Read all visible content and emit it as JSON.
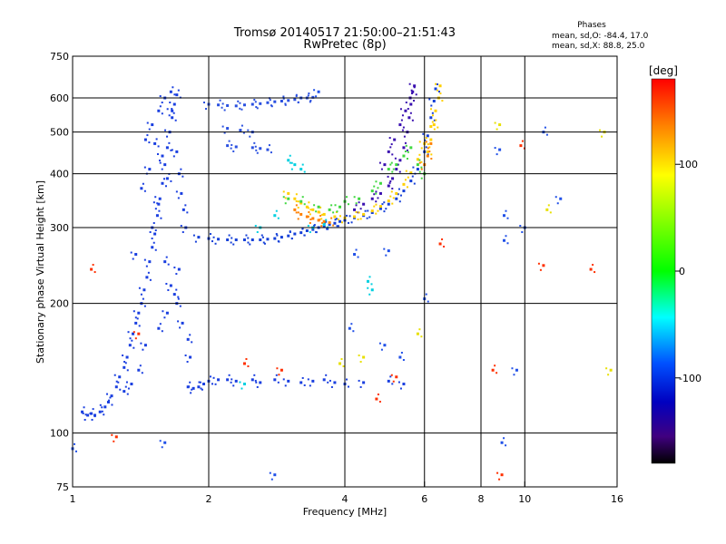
{
  "chart_data": {
    "type": "scatter",
    "title": "Tromsø 20140517 21:50:00–21:51:43",
    "subtitle": "RwPretec (8p)",
    "xlabel": "Frequency [MHz]",
    "ylabel": "Stationary phase Virtual Height [km]",
    "x_scale": "log2",
    "y_scale": "log",
    "xlim": [
      1,
      16
    ],
    "ylim": [
      75,
      750
    ],
    "x_ticks": [
      1,
      2,
      4,
      6,
      8,
      10,
      16
    ],
    "y_ticks": [
      75,
      100,
      200,
      300,
      400,
      500,
      600,
      750
    ],
    "grid": true,
    "phases_header": "Phases",
    "phase_stats": [
      "mean, sd,O: -84.4, 17.0",
      "mean, sd,X:  88.8, 25.0"
    ],
    "colorbar": {
      "label": "[deg]",
      "range": [
        -180,
        180
      ],
      "ticks": [
        100,
        0,
        -100
      ],
      "colors": [
        "#ff0000",
        "#ff8000",
        "#ffff00",
        "#00ff00",
        "#00ffff",
        "#0040ff",
        "#0000c0",
        "#400080",
        "#000000"
      ]
    },
    "series": [
      {
        "comment_key": "F1 low-frequency column",
        "color": "#1a3fe0",
        "points": [
          [
            1.05,
            112
          ],
          [
            1.08,
            110
          ],
          [
            1.1,
            111
          ],
          [
            1.12,
            110
          ],
          [
            1.15,
            112
          ],
          [
            1.18,
            115
          ],
          [
            1.2,
            118
          ],
          [
            1.22,
            122
          ],
          [
            1.25,
            128
          ],
          [
            1.27,
            135
          ],
          [
            1.3,
            142
          ],
          [
            1.32,
            150
          ],
          [
            1.34,
            160
          ],
          [
            1.36,
            170
          ],
          [
            1.38,
            180
          ],
          [
            1.4,
            190
          ],
          [
            1.42,
            200
          ],
          [
            1.44,
            215
          ],
          [
            1.46,
            230
          ],
          [
            1.48,
            250
          ],
          [
            1.5,
            270
          ],
          [
            1.52,
            290
          ],
          [
            1.54,
            320
          ],
          [
            1.56,
            350
          ],
          [
            1.58,
            380
          ],
          [
            1.6,
            420
          ],
          [
            1.62,
            460
          ],
          [
            1.64,
            500
          ],
          [
            1.66,
            540
          ],
          [
            1.68,
            580
          ],
          [
            1.65,
            620
          ],
          [
            1.6,
            600
          ],
          [
            1.55,
            560
          ],
          [
            1.5,
            520
          ],
          [
            1.45,
            480
          ],
          [
            1.7,
            450
          ],
          [
            1.72,
            400
          ],
          [
            1.74,
            360
          ],
          [
            1.76,
            330
          ],
          [
            1.78,
            300
          ],
          [
            1.6,
            250
          ],
          [
            1.65,
            220
          ],
          [
            1.7,
            200
          ],
          [
            1.75,
            180
          ],
          [
            1.8,
            165
          ],
          [
            1.82,
            150
          ],
          [
            1.4,
            140
          ],
          [
            1.35,
            130
          ],
          [
            1.3,
            125
          ],
          [
            1.45,
            160
          ],
          [
            1.55,
            175
          ],
          [
            1.62,
            190
          ],
          [
            1.68,
            210
          ],
          [
            1.72,
            240
          ],
          [
            1.5,
            300
          ],
          [
            1.55,
            340
          ],
          [
            1.62,
            390
          ],
          [
            1.58,
            440
          ],
          [
            1.52,
            470
          ],
          [
            1.66,
            560
          ],
          [
            1.7,
            610
          ],
          [
            1.48,
            410
          ],
          [
            1.42,
            370
          ],
          [
            1.38,
            260
          ]
        ]
      },
      {
        "comment_key": "F2 trace near 280 km",
        "color": "#1540d8",
        "points": [
          [
            1.9,
            285
          ],
          [
            2.0,
            283
          ],
          [
            2.1,
            282
          ],
          [
            2.2,
            281
          ],
          [
            2.3,
            281
          ],
          [
            2.4,
            281
          ],
          [
            2.5,
            281
          ],
          [
            2.6,
            281
          ],
          [
            2.7,
            282
          ],
          [
            2.8,
            283
          ],
          [
            2.9,
            285
          ],
          [
            3.0,
            287
          ],
          [
            3.1,
            290
          ],
          [
            3.2,
            292
          ],
          [
            3.3,
            295
          ],
          [
            3.4,
            297
          ],
          [
            3.5,
            300
          ],
          [
            3.6,
            302
          ],
          [
            3.7,
            305
          ],
          [
            3.8,
            307
          ],
          [
            3.9,
            310
          ],
          [
            4.0,
            312
          ],
          [
            4.2,
            316
          ],
          [
            4.4,
            320
          ],
          [
            4.6,
            325
          ],
          [
            4.8,
            332
          ],
          [
            5.0,
            340
          ],
          [
            5.2,
            350
          ],
          [
            5.4,
            365
          ],
          [
            5.6,
            385
          ],
          [
            5.8,
            410
          ],
          [
            6.0,
            450
          ],
          [
            6.1,
            490
          ],
          [
            6.2,
            540
          ],
          [
            6.3,
            590
          ],
          [
            6.35,
            630
          ]
        ]
      },
      {
        "comment_key": "Second F2 cusp trace",
        "color": "#3a10b0",
        "points": [
          [
            4.2,
            330
          ],
          [
            4.4,
            340
          ],
          [
            4.6,
            350
          ],
          [
            4.8,
            360
          ],
          [
            5.0,
            375
          ],
          [
            5.1,
            390
          ],
          [
            5.2,
            410
          ],
          [
            5.3,
            430
          ],
          [
            5.4,
            460
          ],
          [
            5.5,
            500
          ],
          [
            5.55,
            540
          ],
          [
            5.6,
            580
          ],
          [
            5.65,
            620
          ],
          [
            4.9,
            420
          ],
          [
            5.0,
            450
          ],
          [
            5.15,
            480
          ],
          [
            5.3,
            520
          ],
          [
            5.45,
            560
          ],
          [
            5.58,
            600
          ],
          [
            5.7,
            640
          ]
        ]
      },
      {
        "comment_key": "Upper echoes near 580 km",
        "color": "#2a50e0",
        "points": [
          [
            2.0,
            580
          ],
          [
            2.1,
            578
          ],
          [
            2.2,
            576
          ],
          [
            2.3,
            575
          ],
          [
            2.4,
            578
          ],
          [
            2.5,
            580
          ],
          [
            2.6,
            582
          ],
          [
            2.7,
            585
          ],
          [
            2.8,
            588
          ],
          [
            2.9,
            590
          ],
          [
            3.0,
            592
          ],
          [
            3.1,
            595
          ],
          [
            3.2,
            600
          ],
          [
            3.3,
            600
          ],
          [
            3.4,
            602
          ],
          [
            2.2,
            465
          ],
          [
            2.3,
            462
          ],
          [
            2.5,
            460
          ],
          [
            2.6,
            458
          ],
          [
            2.7,
            455
          ],
          [
            2.2,
            510
          ],
          [
            2.35,
            505
          ],
          [
            2.5,
            500
          ]
        ]
      },
      {
        "comment_key": "Low E-region echoes",
        "color": "#1a3fe0",
        "points": [
          [
            1.8,
            128
          ],
          [
            1.85,
            127
          ],
          [
            1.9,
            128
          ],
          [
            1.95,
            130
          ],
          [
            2.0,
            132
          ],
          [
            2.1,
            133
          ],
          [
            2.2,
            133
          ],
          [
            2.3,
            132
          ],
          [
            2.5,
            133
          ],
          [
            2.6,
            131
          ],
          [
            2.8,
            133
          ],
          [
            3.0,
            132
          ],
          [
            3.2,
            131
          ],
          [
            3.4,
            132
          ],
          [
            3.6,
            133
          ],
          [
            3.8,
            131
          ],
          [
            4.0,
            130
          ],
          [
            4.4,
            131
          ],
          [
            5.0,
            132
          ],
          [
            5.4,
            130
          ]
        ]
      },
      {
        "comment_key": "X-mode trace (positive phase)",
        "color": "#ffd000",
        "points": [
          [
            3.0,
            360
          ],
          [
            3.1,
            350
          ],
          [
            3.2,
            342
          ],
          [
            3.3,
            335
          ],
          [
            3.4,
            330
          ],
          [
            3.5,
            326
          ],
          [
            3.6,
            322
          ],
          [
            3.8,
            318
          ],
          [
            4.0,
            316
          ],
          [
            4.2,
            318
          ],
          [
            4.4,
            322
          ],
          [
            4.6,
            328
          ],
          [
            4.8,
            336
          ],
          [
            5.0,
            346
          ],
          [
            5.2,
            360
          ],
          [
            5.4,
            378
          ],
          [
            5.6,
            402
          ],
          [
            5.8,
            432
          ],
          [
            6.0,
            470
          ],
          [
            6.2,
            515
          ],
          [
            6.35,
            560
          ],
          [
            6.45,
            600
          ],
          [
            6.5,
            640
          ],
          [
            6.3,
            520
          ],
          [
            6.2,
            480
          ],
          [
            6.1,
            450
          ]
        ]
      },
      {
        "comment_key": "Orange X-mode core",
        "color": "#ff8000",
        "points": [
          [
            3.1,
            330
          ],
          [
            3.2,
            322
          ],
          [
            3.3,
            318
          ],
          [
            3.4,
            315
          ],
          [
            3.5,
            312
          ],
          [
            3.6,
            310
          ],
          [
            3.7,
            308
          ],
          [
            6.0,
            420
          ],
          [
            6.1,
            440
          ],
          [
            6.2,
            470
          ]
        ]
      },
      {
        "comment_key": "Green and cyan scatter",
        "color": "#40d840",
        "points": [
          [
            3.0,
            350
          ],
          [
            3.2,
            345
          ],
          [
            3.5,
            335
          ],
          [
            3.7,
            330
          ],
          [
            3.9,
            335
          ],
          [
            4.0,
            345
          ],
          [
            4.3,
            350
          ],
          [
            4.6,
            365
          ],
          [
            4.8,
            380
          ],
          [
            5.0,
            410
          ],
          [
            5.2,
            420
          ],
          [
            5.4,
            440
          ],
          [
            5.6,
            460
          ],
          [
            5.8,
            420
          ],
          [
            6.0,
            400
          ]
        ]
      },
      {
        "comment_key": "Cyan scatter",
        "color": "#00d0e0",
        "points": [
          [
            3.0,
            430
          ],
          [
            3.1,
            420
          ],
          [
            3.2,
            410
          ],
          [
            2.6,
            300
          ],
          [
            2.8,
            320
          ],
          [
            3.4,
            300
          ],
          [
            3.6,
            305
          ],
          [
            2.4,
            130
          ],
          [
            4.5,
            225
          ],
          [
            4.6,
            215
          ]
        ]
      },
      {
        "comment_key": "Sparse outliers",
        "color": "#2050e8",
        "points": [
          [
            1.6,
            95
          ],
          [
            1.0,
            92
          ],
          [
            2.8,
            80
          ],
          [
            8.9,
            95
          ],
          [
            3.5,
            620
          ],
          [
            4.1,
            175
          ],
          [
            4.9,
            160
          ],
          [
            5.3,
            150
          ],
          [
            8.8,
            455
          ],
          [
            9.0,
            280
          ],
          [
            9.6,
            140
          ],
          [
            9.0,
            320
          ],
          [
            12.0,
            350
          ],
          [
            11.0,
            500
          ],
          [
            10.0,
            300
          ],
          [
            6.0,
            205
          ],
          [
            5.0,
            265
          ],
          [
            4.2,
            260
          ]
        ]
      },
      {
        "comment_key": "Red / orange outliers",
        "color": "#ff3000",
        "points": [
          [
            1.1,
            240
          ],
          [
            1.4,
            170
          ],
          [
            2.4,
            145
          ],
          [
            2.9,
            140
          ],
          [
            4.7,
            120
          ],
          [
            5.2,
            135
          ],
          [
            8.5,
            140
          ],
          [
            8.9,
            80
          ],
          [
            9.8,
            465
          ],
          [
            11.0,
            245
          ],
          [
            14.0,
            240
          ],
          [
            1.25,
            98
          ],
          [
            6.5,
            275
          ]
        ]
      },
      {
        "comment_key": "Yellow outliers",
        "color": "#e8e000",
        "points": [
          [
            15.0,
            500
          ],
          [
            11.2,
            330
          ],
          [
            8.8,
            520
          ],
          [
            5.8,
            170
          ],
          [
            4.4,
            150
          ],
          [
            3.9,
            145
          ],
          [
            15.5,
            140
          ]
        ]
      }
    ]
  }
}
